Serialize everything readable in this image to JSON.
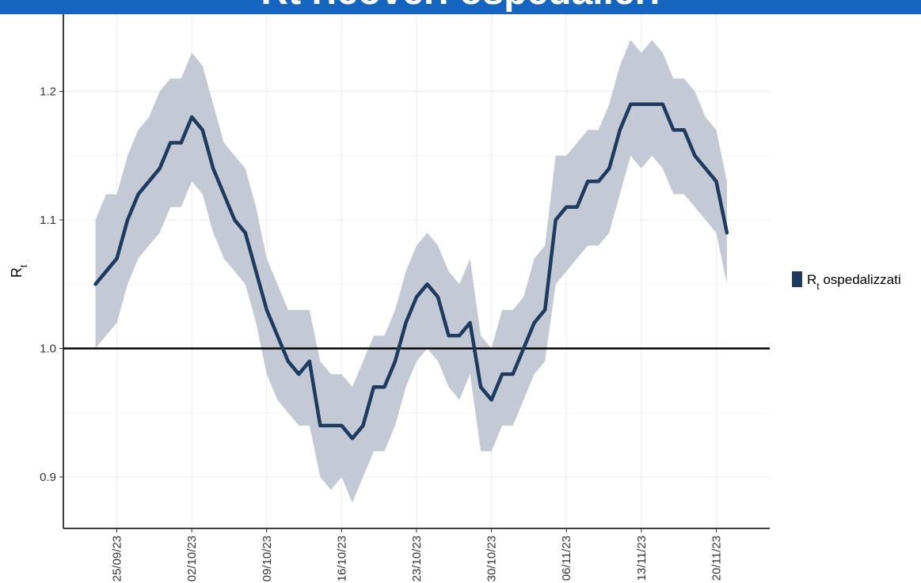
{
  "header": {
    "banner_text": "Rt ricoveri ospedalieri"
  },
  "colors": {
    "line": "#1f3a5f",
    "band": "#c3cad5",
    "banner": "#1565c0",
    "grid": "#ebebeb",
    "reference": "#000000"
  },
  "chart_data": {
    "type": "line",
    "title": "",
    "xlabel": "",
    "ylabel": "Rt",
    "ylim": [
      0.86,
      1.26
    ],
    "xlim": [
      "2023-09-20",
      "2023-11-25"
    ],
    "grid": true,
    "legend_position": "right",
    "reference_line": 1.0,
    "yticks": [
      0.9,
      1.0,
      1.1,
      1.2
    ],
    "xticks": [
      {
        "date": "2023-09-25",
        "label": "25/09/23"
      },
      {
        "date": "2023-10-02",
        "label": "02/10/23"
      },
      {
        "date": "2023-10-09",
        "label": "09/10/23"
      },
      {
        "date": "2023-10-16",
        "label": "16/10/23"
      },
      {
        "date": "2023-10-23",
        "label": "23/10/23"
      },
      {
        "date": "2023-10-30",
        "label": "30/10/23"
      },
      {
        "date": "2023-11-06",
        "label": "06/11/23"
      },
      {
        "date": "2023-11-13",
        "label": "13/11/23"
      },
      {
        "date": "2023-11-20",
        "label": "20/11/23"
      }
    ],
    "series": [
      {
        "name": "Rt ospedalizzati",
        "x": [
          "2023-09-23",
          "2023-09-24",
          "2023-09-25",
          "2023-09-26",
          "2023-09-27",
          "2023-09-28",
          "2023-09-29",
          "2023-09-30",
          "2023-10-01",
          "2023-10-02",
          "2023-10-03",
          "2023-10-04",
          "2023-10-05",
          "2023-10-06",
          "2023-10-07",
          "2023-10-08",
          "2023-10-09",
          "2023-10-10",
          "2023-10-11",
          "2023-10-12",
          "2023-10-13",
          "2023-10-14",
          "2023-10-15",
          "2023-10-16",
          "2023-10-17",
          "2023-10-18",
          "2023-10-19",
          "2023-10-20",
          "2023-10-21",
          "2023-10-22",
          "2023-10-23",
          "2023-10-24",
          "2023-10-25",
          "2023-10-26",
          "2023-10-27",
          "2023-10-28",
          "2023-10-29",
          "2023-10-30",
          "2023-10-31",
          "2023-11-01",
          "2023-11-02",
          "2023-11-03",
          "2023-11-04",
          "2023-11-05",
          "2023-11-06",
          "2023-11-07",
          "2023-11-08",
          "2023-11-09",
          "2023-11-10",
          "2023-11-11",
          "2023-11-12",
          "2023-11-13",
          "2023-11-14",
          "2023-11-15",
          "2023-11-16",
          "2023-11-17",
          "2023-11-18",
          "2023-11-19",
          "2023-11-20",
          "2023-11-21"
        ],
        "values": [
          1.05,
          1.06,
          1.07,
          1.1,
          1.12,
          1.13,
          1.14,
          1.16,
          1.16,
          1.18,
          1.17,
          1.14,
          1.12,
          1.1,
          1.09,
          1.06,
          1.03,
          1.01,
          0.99,
          0.98,
          0.99,
          0.94,
          0.94,
          0.94,
          0.93,
          0.94,
          0.97,
          0.97,
          0.99,
          1.02,
          1.04,
          1.05,
          1.04,
          1.01,
          1.01,
          1.02,
          0.97,
          0.96,
          0.98,
          0.98,
          1.0,
          1.02,
          1.03,
          1.1,
          1.11,
          1.11,
          1.13,
          1.13,
          1.14,
          1.17,
          1.19,
          1.19,
          1.19,
          1.19,
          1.17,
          1.17,
          1.15,
          1.14,
          1.13,
          1.09
        ],
        "lower": [
          1.0,
          1.01,
          1.02,
          1.05,
          1.07,
          1.08,
          1.09,
          1.11,
          1.11,
          1.13,
          1.12,
          1.09,
          1.07,
          1.06,
          1.05,
          1.02,
          0.98,
          0.96,
          0.95,
          0.94,
          0.94,
          0.9,
          0.89,
          0.9,
          0.88,
          0.9,
          0.92,
          0.92,
          0.94,
          0.97,
          0.99,
          1.0,
          0.99,
          0.97,
          0.96,
          0.98,
          0.92,
          0.92,
          0.94,
          0.94,
          0.96,
          0.98,
          0.99,
          1.05,
          1.06,
          1.07,
          1.08,
          1.08,
          1.09,
          1.12,
          1.15,
          1.14,
          1.15,
          1.14,
          1.12,
          1.12,
          1.11,
          1.1,
          1.09,
          1.05
        ],
        "upper": [
          1.1,
          1.12,
          1.12,
          1.15,
          1.17,
          1.18,
          1.2,
          1.21,
          1.21,
          1.23,
          1.22,
          1.19,
          1.16,
          1.15,
          1.14,
          1.11,
          1.07,
          1.05,
          1.03,
          1.03,
          1.03,
          0.99,
          0.98,
          0.98,
          0.97,
          0.99,
          1.01,
          1.01,
          1.03,
          1.06,
          1.08,
          1.09,
          1.08,
          1.06,
          1.05,
          1.07,
          1.01,
          1.0,
          1.03,
          1.03,
          1.04,
          1.07,
          1.08,
          1.15,
          1.15,
          1.16,
          1.17,
          1.17,
          1.19,
          1.22,
          1.24,
          1.23,
          1.24,
          1.23,
          1.21,
          1.21,
          1.2,
          1.18,
          1.17,
          1.13
        ]
      }
    ]
  }
}
